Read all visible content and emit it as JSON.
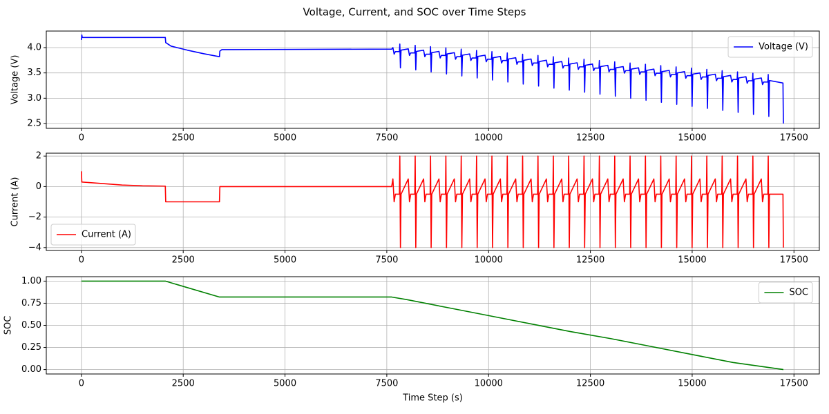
{
  "title": "Voltage, Current, and SOC over Time Steps",
  "chart_data": [
    {
      "type": "line",
      "ylabel": "Voltage (V)",
      "legend": "upper right",
      "grid": true,
      "xlim": [
        -863,
        18123
      ],
      "ylim": [
        2.405,
        4.327
      ],
      "xticks": [
        0,
        2500,
        5000,
        7500,
        10000,
        12500,
        15000,
        17500
      ],
      "yticks": [
        2.5,
        {
          "value": 3.0,
          "label": "3.0"
        },
        3.5,
        {
          "value": 4.0,
          "label": "4.0"
        }
      ],
      "x": [
        0,
        10,
        20,
        2060,
        2070,
        2200,
        2600,
        3000,
        3390,
        3400,
        3450,
        7620,
        7650,
        7680,
        7710,
        7810,
        7820,
        7835,
        7850,
        8027,
        8057,
        8087,
        8187,
        8197,
        8212,
        8227,
        8404,
        8434,
        8464,
        8564,
        8574,
        8589,
        8604,
        8781,
        8811,
        8841,
        8941,
        8951,
        8966,
        8981,
        9158,
        9188,
        9218,
        9318,
        9328,
        9343,
        9358,
        9535,
        9565,
        9595,
        9695,
        9705,
        9720,
        9735,
        9912,
        9942,
        9972,
        10072,
        10082,
        10097,
        10112,
        10289,
        10319,
        10349,
        10449,
        10459,
        10474,
        10489,
        10666,
        10696,
        10726,
        10826,
        10836,
        10851,
        10866,
        11043,
        11073,
        11103,
        11203,
        11213,
        11228,
        11243,
        11420,
        11450,
        11480,
        11580,
        11590,
        11605,
        11620,
        11797,
        11827,
        11857,
        11957,
        11967,
        11982,
        11997,
        12174,
        12204,
        12234,
        12334,
        12344,
        12359,
        12374,
        12551,
        12581,
        12611,
        12711,
        12721,
        12736,
        12751,
        12928,
        12958,
        12988,
        13088,
        13098,
        13113,
        13128,
        13305,
        13335,
        13365,
        13465,
        13475,
        13490,
        13505,
        13682,
        13712,
        13742,
        13842,
        13852,
        13867,
        13882,
        14059,
        14089,
        14119,
        14219,
        14229,
        14244,
        14259,
        14436,
        14466,
        14496,
        14596,
        14606,
        14621,
        14636,
        14813,
        14843,
        14873,
        14973,
        14983,
        14998,
        15013,
        15190,
        15220,
        15250,
        15350,
        15360,
        15375,
        15390,
        15567,
        15597,
        15627,
        15727,
        15737,
        15752,
        15767,
        15944,
        15974,
        16004,
        16104,
        16114,
        16129,
        16144,
        16321,
        16351,
        16381,
        16481,
        16491,
        16506,
        16521,
        16698,
        16728,
        16758,
        16858,
        16868,
        16883,
        16898,
        17100,
        17230,
        17240
      ],
      "series": [
        {
          "name": "Voltage (V)",
          "color": "#0000ff",
          "values": [
            4.15,
            4.25,
            4.2,
            4.2,
            4.1,
            4.03,
            3.95,
            3.88,
            3.82,
            3.93,
            3.96,
            3.97,
            4.0,
            3.87,
            3.92,
            3.92,
            4.07,
            3.6,
            3.95,
            3.975,
            3.845,
            3.895,
            3.895,
            4.045,
            3.56,
            3.925,
            3.95,
            3.82,
            3.87,
            3.87,
            4.02,
            3.52,
            3.9,
            3.925,
            3.795,
            3.845,
            3.845,
            3.995,
            3.48,
            3.875,
            3.9,
            3.77,
            3.82,
            3.82,
            3.97,
            3.44,
            3.85,
            3.875,
            3.745,
            3.795,
            3.795,
            3.945,
            3.4,
            3.825,
            3.85,
            3.72,
            3.77,
            3.77,
            3.92,
            3.36,
            3.8,
            3.825,
            3.695,
            3.745,
            3.745,
            3.895,
            3.32,
            3.775,
            3.8,
            3.67,
            3.72,
            3.72,
            3.87,
            3.28,
            3.75,
            3.775,
            3.645,
            3.695,
            3.695,
            3.845,
            3.24,
            3.725,
            3.75,
            3.62,
            3.67,
            3.67,
            3.82,
            3.2,
            3.7,
            3.725,
            3.595,
            3.645,
            3.645,
            3.795,
            3.16,
            3.675,
            3.7,
            3.57,
            3.62,
            3.62,
            3.77,
            3.12,
            3.65,
            3.675,
            3.545,
            3.595,
            3.595,
            3.745,
            3.08,
            3.625,
            3.65,
            3.52,
            3.57,
            3.57,
            3.72,
            3.04,
            3.6,
            3.625,
            3.495,
            3.545,
            3.545,
            3.695,
            3.0,
            3.575,
            3.6,
            3.47,
            3.52,
            3.52,
            3.67,
            2.96,
            3.55,
            3.575,
            3.445,
            3.495,
            3.495,
            3.645,
            2.92,
            3.525,
            3.55,
            3.42,
            3.47,
            3.47,
            3.62,
            2.88,
            3.5,
            3.525,
            3.395,
            3.445,
            3.445,
            3.595,
            2.84,
            3.475,
            3.5,
            3.37,
            3.42,
            3.42,
            3.57,
            2.8,
            3.45,
            3.475,
            3.345,
            3.395,
            3.395,
            3.545,
            2.76,
            3.425,
            3.45,
            3.32,
            3.37,
            3.37,
            3.52,
            2.72,
            3.4,
            3.425,
            3.295,
            3.345,
            3.345,
            3.495,
            2.68,
            3.375,
            3.4,
            3.27,
            3.32,
            3.32,
            3.47,
            2.64,
            3.35,
            3.32,
            3.3,
            2.5
          ]
        }
      ]
    },
    {
      "type": "line",
      "ylabel": "Current (A)",
      "legend": "lower left",
      "grid": true,
      "xlim": [
        -863,
        18123
      ],
      "ylim": [
        -4.19,
        2.19
      ],
      "xticks": [
        0,
        2500,
        5000,
        7500,
        10000,
        12500,
        15000,
        17500
      ],
      "yticks": [
        {
          "value": -4,
          "label": "−4"
        },
        {
          "value": -2,
          "label": "−2"
        },
        0,
        2
      ],
      "x": [
        0,
        10,
        500,
        1000,
        1500,
        2060,
        2070,
        3390,
        3400,
        7620,
        7650,
        7680,
        7710,
        7810,
        7820,
        7835,
        7850,
        8027,
        8057,
        8087,
        8187,
        8197,
        8212,
        8227,
        8404,
        8434,
        8464,
        8564,
        8574,
        8589,
        8604,
        8781,
        8811,
        8841,
        8941,
        8951,
        8966,
        8981,
        9158,
        9188,
        9218,
        9318,
        9328,
        9343,
        9358,
        9535,
        9565,
        9595,
        9695,
        9705,
        9720,
        9735,
        9912,
        9942,
        9972,
        10072,
        10082,
        10097,
        10112,
        10289,
        10319,
        10349,
        10449,
        10459,
        10474,
        10489,
        10666,
        10696,
        10726,
        10826,
        10836,
        10851,
        10866,
        11043,
        11073,
        11103,
        11203,
        11213,
        11228,
        11243,
        11420,
        11450,
        11480,
        11580,
        11590,
        11605,
        11620,
        11797,
        11827,
        11857,
        11957,
        11967,
        11982,
        11997,
        12174,
        12204,
        12234,
        12334,
        12344,
        12359,
        12374,
        12551,
        12581,
        12611,
        12711,
        12721,
        12736,
        12751,
        12928,
        12958,
        12988,
        13088,
        13098,
        13113,
        13128,
        13305,
        13335,
        13365,
        13465,
        13475,
        13490,
        13505,
        13682,
        13712,
        13742,
        13842,
        13852,
        13867,
        13882,
        14059,
        14089,
        14119,
        14219,
        14229,
        14244,
        14259,
        14436,
        14466,
        14496,
        14596,
        14606,
        14621,
        14636,
        14813,
        14843,
        14873,
        14973,
        14983,
        14998,
        15013,
        15190,
        15220,
        15250,
        15350,
        15360,
        15375,
        15390,
        15567,
        15597,
        15627,
        15727,
        15737,
        15752,
        15767,
        15944,
        15974,
        16004,
        16104,
        16114,
        16129,
        16144,
        16321,
        16351,
        16381,
        16481,
        16491,
        16506,
        16521,
        16698,
        16728,
        16758,
        16858,
        16868,
        16883,
        16898,
        17100,
        17230,
        17240
      ],
      "series": [
        {
          "name": "Current (A)",
          "color": "#ff0000",
          "values": [
            1.0,
            0.3,
            0.2,
            0.1,
            0.05,
            0.03,
            -1,
            -1,
            0,
            0,
            0.5,
            -1,
            -0.5,
            -0.5,
            2,
            -4,
            -0.5,
            0.5,
            -1,
            -0.5,
            -0.5,
            2,
            -4,
            -0.5,
            0.5,
            -1,
            -0.5,
            -0.5,
            2,
            -4,
            -0.5,
            0.5,
            -1,
            -0.5,
            -0.5,
            2,
            -4,
            -0.5,
            0.5,
            -1,
            -0.5,
            -0.5,
            2,
            -4,
            -0.5,
            0.5,
            -1,
            -0.5,
            -0.5,
            2,
            -4,
            -0.5,
            0.5,
            -1,
            -0.5,
            -0.5,
            2,
            -4,
            -0.5,
            0.5,
            -1,
            -0.5,
            -0.5,
            2,
            -4,
            -0.5,
            0.5,
            -1,
            -0.5,
            -0.5,
            2,
            -4,
            -0.5,
            0.5,
            -1,
            -0.5,
            -0.5,
            2,
            -4,
            -0.5,
            0.5,
            -1,
            -0.5,
            -0.5,
            2,
            -4,
            -0.5,
            0.5,
            -1,
            -0.5,
            -0.5,
            2,
            -4,
            -0.5,
            0.5,
            -1,
            -0.5,
            -0.5,
            2,
            -4,
            -0.5,
            0.5,
            -1,
            -0.5,
            -0.5,
            2,
            -4,
            -0.5,
            0.5,
            -1,
            -0.5,
            -0.5,
            2,
            -4,
            -0.5,
            0.5,
            -1,
            -0.5,
            -0.5,
            2,
            -4,
            -0.5,
            0.5,
            -1,
            -0.5,
            -0.5,
            2,
            -4,
            -0.5,
            0.5,
            -1,
            -0.5,
            -0.5,
            2,
            -4,
            -0.5,
            0.5,
            -1,
            -0.5,
            -0.5,
            2,
            -4,
            -0.5,
            0.5,
            -1,
            -0.5,
            -0.5,
            2,
            -4,
            -0.5,
            0.5,
            -1,
            -0.5,
            -0.5,
            2,
            -4,
            -0.5,
            0.5,
            -1,
            -0.5,
            -0.5,
            2,
            -4,
            -0.5,
            0.5,
            -1,
            -0.5,
            -0.5,
            2,
            -4,
            -0.5,
            0.5,
            -1,
            -0.5,
            -0.5,
            2,
            -4,
            -0.5,
            0.5,
            -1,
            -0.5,
            -0.5,
            2,
            -4,
            -0.5,
            -0.5,
            -0.5,
            -4
          ]
        }
      ]
    },
    {
      "type": "line",
      "ylabel": "SOC",
      "xlabel": "Time Step (s)",
      "legend": "upper right",
      "grid": true,
      "xlim": [
        -863,
        18123
      ],
      "ylim": [
        -0.05,
        1.05
      ],
      "xticks": [
        0,
        2500,
        5000,
        7500,
        10000,
        12500,
        15000,
        17500
      ],
      "yticks": [
        {
          "value": 0,
          "label": "0.00"
        },
        {
          "value": 0.25,
          "label": "0.25"
        },
        {
          "value": 0.5,
          "label": "0.50"
        },
        {
          "value": 0.75,
          "label": "0.75"
        },
        {
          "value": 1,
          "label": "1.00"
        }
      ],
      "x": [
        0,
        2060,
        3390,
        7620,
        8000,
        9000,
        10000,
        11000,
        12000,
        13000,
        14000,
        15000,
        16000,
        17240
      ],
      "series": [
        {
          "name": "SOC",
          "color": "#008000",
          "values": [
            1,
            1,
            0.82,
            0.82,
            0.79,
            0.7,
            0.61,
            0.52,
            0.43,
            0.35,
            0.26,
            0.17,
            0.08,
            0.0
          ]
        }
      ]
    }
  ]
}
